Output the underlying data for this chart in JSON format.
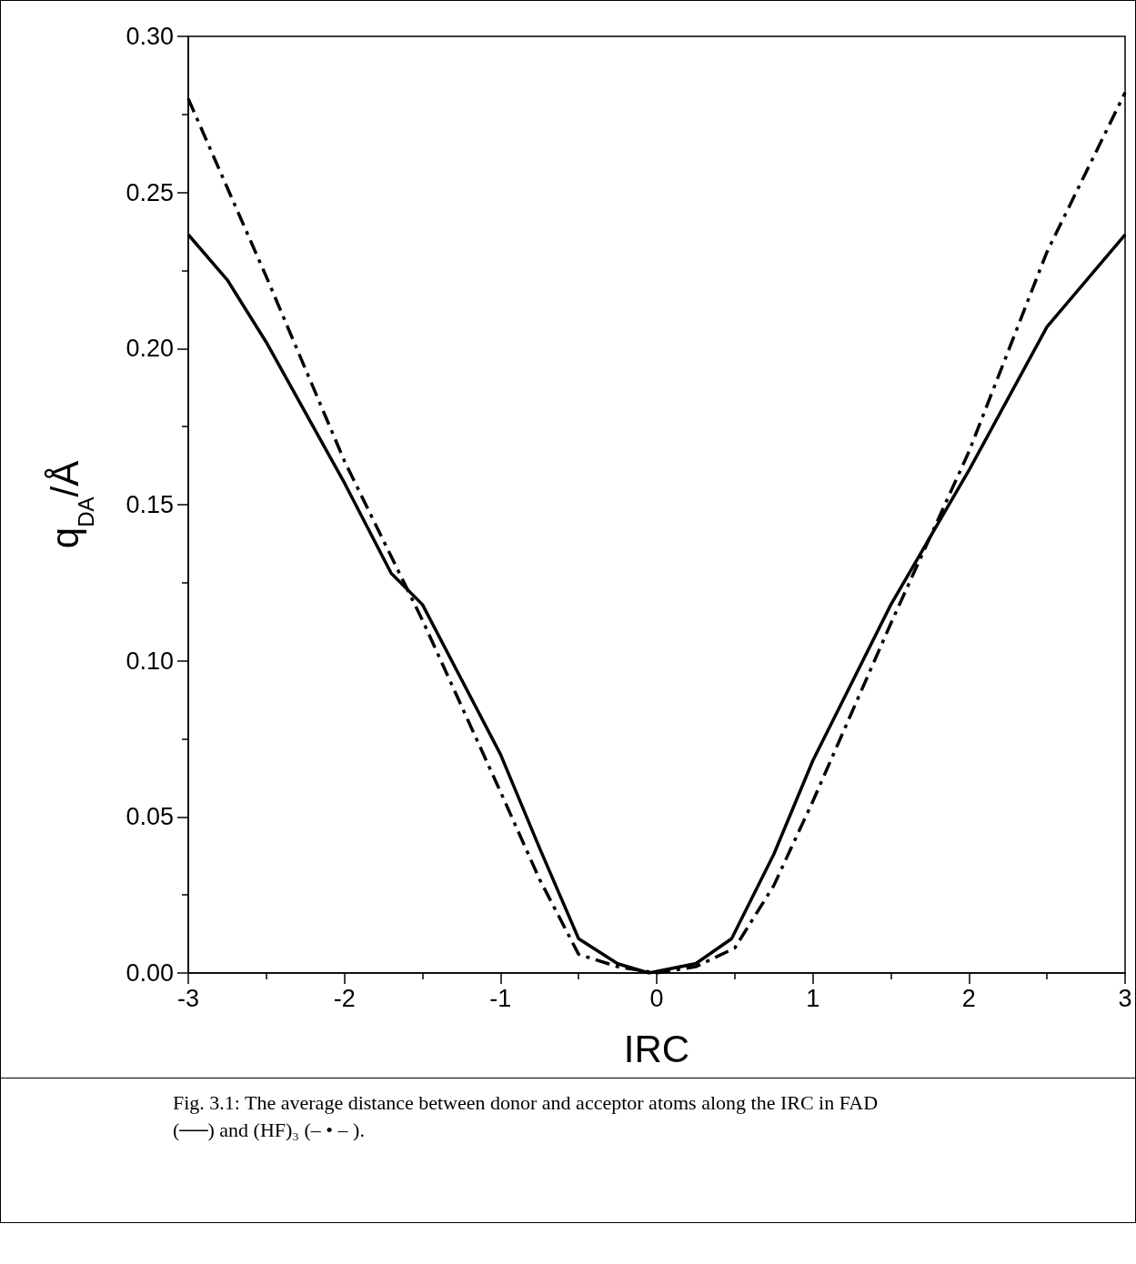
{
  "chart_data": {
    "type": "line",
    "xlabel": "IRC",
    "ylabel": "q$_{DA}$/Å",
    "annotations": [
      "Fig. 3.1: The average distance between donor and acceptor atoms along the IRC in FAD (──) and (HF)₃ (– • – )."
    ],
    "series": [
      {
        "color": "#000000",
        "line_style": "solid",
        "x": [
          -3,
          -2.75,
          -2.5,
          -2,
          -1.7,
          -1.5,
          -1,
          -0.75,
          -0.5,
          -0.25,
          -0.05,
          0.25,
          0.48,
          0.75,
          1,
          1.5,
          2,
          2.5,
          3
        ],
        "values": [
          0.2365,
          0.222,
          0.202,
          0.157,
          0.128,
          0.118,
          0.07,
          0.04,
          0.011,
          0.003,
          0,
          0.003,
          0.011,
          0.038,
          0.068,
          0.118,
          0.161,
          0.207,
          0.2365
        ]
      },
      {
        "color": "#000000",
        "line_style": "dashed",
        "x": [
          -3,
          -2.5,
          -2,
          -1.5,
          -1,
          -0.75,
          -0.5,
          -0.25,
          0,
          0.25,
          0.5,
          0.75,
          1,
          1.5,
          2,
          2.5,
          3
        ],
        "values": [
          0.28,
          0.223,
          0.164,
          0.113,
          0.058,
          0.03,
          0.006,
          0.002,
          0,
          0.002,
          0.008,
          0.028,
          0.055,
          0.112,
          0.167,
          0.231,
          0.282
        ]
      }
    ],
    "xlim": [
      -3,
      3
    ],
    "xticks": [
      -3,
      -2,
      -1,
      0,
      1,
      2,
      3
    ],
    "ylim": [
      0,
      0.3
    ],
    "yticks": [
      {
        "value": 0,
        "label": "0.00"
      },
      {
        "value": 0.05,
        "label": "0.05"
      },
      {
        "value": 0.1,
        "label": "0.10"
      },
      {
        "value": 0.15,
        "label": "0.15"
      },
      {
        "value": 0.2,
        "label": "0.20"
      },
      {
        "value": 0.25,
        "label": "0.25"
      },
      {
        "value": 0.3,
        "label": "0.30"
      }
    ],
    "grid": false,
    "marker": "none"
  }
}
